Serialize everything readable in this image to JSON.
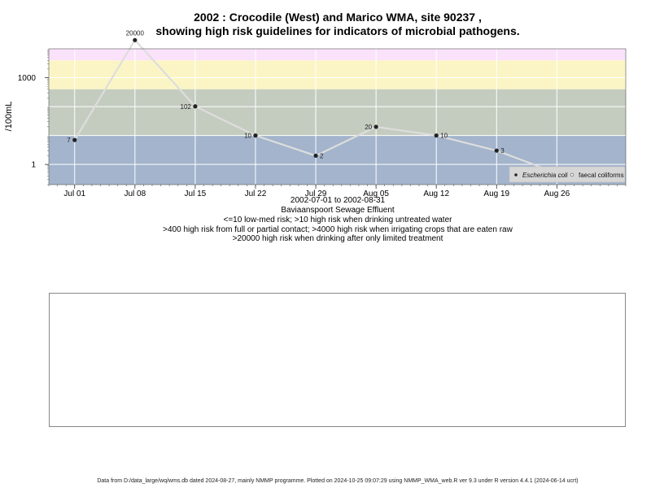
{
  "header": {
    "title_line1": "2002 : Crocodile (West) and Marico WMA, site 90237 ,",
    "title_line2": "showing high risk guidelines for indicators of microbial pathogens."
  },
  "chart_data": {
    "type": "line",
    "title": "2002 : Crocodile (West) and Marico WMA, site 90237 ,",
    "subtitle": "showing high risk guidelines for indicators of microbial pathogens.",
    "xlabel": "",
    "ylabel": "/100mL",
    "y_scale": "log10",
    "ylim": [
      0.2,
      10000
    ],
    "xlim": [
      "2002-06-28",
      "2002-09-03"
    ],
    "x_ticks": [
      "2002-07-01",
      "2002-07-08",
      "2002-07-15",
      "2002-07-22",
      "2002-07-29",
      "2002-08-05",
      "2002-08-12",
      "2002-08-19",
      "2002-08-26"
    ],
    "x_tick_labels": [
      "Jul 01",
      "Jul 08",
      "Jul 15",
      "Jul 22",
      "Jul 29",
      "Aug 05",
      "Aug 12",
      "Aug 19",
      "Aug 26"
    ],
    "y_ticks": [
      1,
      1000
    ],
    "y_tick_labels": [
      "1",
      "1000"
    ],
    "grid": true,
    "bands": [
      {
        "from": 0.2,
        "to": 10,
        "color": "#a3b4cc"
      },
      {
        "from": 10,
        "to": 400,
        "color": "#c4ccc0"
      },
      {
        "from": 400,
        "to": 4000,
        "color": "#fbf5c5"
      },
      {
        "from": 4000,
        "to": 20000,
        "color": "#fbe2fb"
      },
      {
        "from": 20000,
        "to": 10000,
        "color": "#f6b6c2"
      }
    ],
    "series": [
      {
        "name": "Escherichia coli",
        "color": "#dddddd",
        "marker_color": "#222222",
        "x": [
          "2002-07-01",
          "2002-07-08",
          "2002-07-15",
          "2002-07-22",
          "2002-07-29",
          "2002-08-05",
          "2002-08-12",
          "2002-08-19",
          "2002-08-26"
        ],
        "values": [
          7,
          20000,
          102,
          10,
          2,
          20,
          10,
          3,
          0.5
        ],
        "labels": [
          "7",
          "20000",
          "102",
          "10",
          "2",
          "20",
          "10",
          "3",
          "0"
        ],
        "label_side": [
          "left",
          "top",
          "left",
          "left",
          "right",
          "left",
          "right",
          "right",
          "right"
        ]
      }
    ],
    "legend": {
      "placement": "bottom-right",
      "entries": [
        "Escherichia coli",
        "faecal coliforms"
      ]
    }
  },
  "captions": {
    "date_range": "2002-07-01 to 2002-08-31",
    "site_name": "Baviaanspoort Sewage Effluent",
    "guideline_1": "<=10 low-med risk; >10 high risk when drinking untreated water",
    "guideline_2": ">400 high risk from full or partial contact; >4000 high risk when irrigating crops that are eaten raw",
    "guideline_3": ">20000 high risk when drinking after only limited treatment"
  },
  "footer": {
    "text": "Data from D:/data_large/wq/wms.db dated 2024-08-27, mainly NMMP programme. Plotted on 2024-10-25 09:07:29 using NMMP_WMA_web.R ver 9.3 under R version 4.4.1 (2024-06-14 ucrt)"
  }
}
